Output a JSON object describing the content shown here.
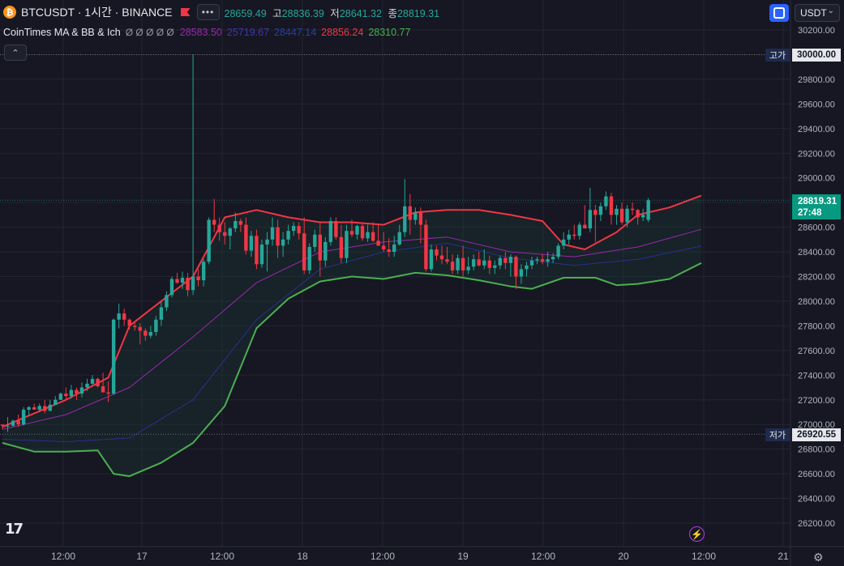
{
  "header": {
    "coin_glyph": "₿",
    "symbol": "BTCUSDT · 1시간 · BINANCE",
    "more_label": "•••",
    "ohlc": [
      {
        "key": "",
        "value": "28659.49"
      },
      {
        "key": "고",
        "value": "28836.39"
      },
      {
        "key": "저",
        "value": "28641.32"
      },
      {
        "key": "종",
        "value": "28819.31"
      }
    ]
  },
  "indicator": {
    "name": "CoinTimes MA & BB & Ich",
    "eye_icons": "Ø Ø Ø Ø Ø",
    "values": [
      {
        "text": "28583.50",
        "color": "#9c27b0"
      },
      {
        "text": "25719.67",
        "color": "#3f35a8"
      },
      {
        "text": "28447.14",
        "color": "#2a3f9f"
      },
      {
        "text": "28856.24",
        "color": "#f23645"
      },
      {
        "text": "28310.77",
        "color": "#4caf50"
      }
    ]
  },
  "toolbar": {
    "currency": "USDT",
    "collapse_icon": "⌃",
    "chevron": "⌄"
  },
  "price_axis": {
    "labels": [
      "30200.00",
      "29800.00",
      "29600.00",
      "29400.00",
      "29200.00",
      "29000.00",
      "28600.00",
      "28400.00",
      "28200.00",
      "28000.00",
      "27800.00",
      "27600.00",
      "27400.00",
      "27200.00",
      "27000.00",
      "26800.00",
      "26600.00",
      "26400.00",
      "26200.00"
    ],
    "high_tag": "고가",
    "high_value": "30000.00",
    "low_tag": "저가",
    "low_value": "26920.55",
    "last_price": "28819.31",
    "countdown": "27:48"
  },
  "time_axis": {
    "labels": [
      "12:00",
      "17",
      "12:00",
      "18",
      "12:00",
      "19",
      "12:00",
      "20",
      "12:00",
      "21"
    ]
  },
  "logo": "17",
  "bolt_icon": "⚡",
  "gear_icon": "⚙",
  "colors": {
    "up": "#26a69a",
    "down": "#f23645",
    "upper_band": "#f23645",
    "lower_band": "#4caf50",
    "ma": "#9c27b0",
    "mid": "#2a2f8f"
  },
  "chart_data": {
    "type": "candlestick",
    "title": "BTCUSDT · 1시간 · BINANCE",
    "timeframe": "1h",
    "ylim": [
      26100,
      30260
    ],
    "x_ticks": [
      "12:00",
      "17",
      "12:00",
      "18",
      "12:00",
      "19",
      "12:00",
      "20",
      "12:00",
      "21"
    ],
    "candles": [
      [
        27000,
        27000,
        26960,
        26990
      ],
      [
        26990,
        27060,
        26940,
        26990
      ],
      [
        26990,
        27040,
        26980,
        27030
      ],
      [
        27030,
        27080,
        26980,
        27000
      ],
      [
        27000,
        27140,
        26990,
        27120
      ],
      [
        27120,
        27150,
        27070,
        27140
      ],
      [
        27140,
        27170,
        27120,
        27120
      ],
      [
        27120,
        27170,
        27100,
        27150
      ],
      [
        27150,
        27200,
        27090,
        27110
      ],
      [
        27110,
        27200,
        27110,
        27160
      ],
      [
        27160,
        27230,
        27160,
        27200
      ],
      [
        27200,
        27260,
        27200,
        27250
      ],
      [
        27250,
        27300,
        27200,
        27230
      ],
      [
        27230,
        27320,
        27210,
        27280
      ],
      [
        27280,
        27300,
        27200,
        27250
      ],
      [
        27250,
        27340,
        27220,
        27300
      ],
      [
        27300,
        27370,
        27270,
        27330
      ],
      [
        27330,
        27400,
        27320,
        27370
      ],
      [
        27370,
        27380,
        27300,
        27310
      ],
      [
        27310,
        27420,
        27280,
        27260
      ],
      [
        27260,
        27350,
        27180,
        27250
      ],
      [
        27250,
        27860,
        27240,
        27850
      ],
      [
        27850,
        27980,
        27780,
        27900
      ],
      [
        27900,
        27940,
        27800,
        27850
      ],
      [
        27850,
        27860,
        27770,
        27800
      ],
      [
        27800,
        27830,
        27760,
        27790
      ],
      [
        27790,
        27820,
        27650,
        27760
      ],
      [
        27760,
        27780,
        27680,
        27720
      ],
      [
        27720,
        27800,
        27700,
        27750
      ],
      [
        27750,
        27880,
        27720,
        27850
      ],
      [
        27850,
        28000,
        27800,
        27950
      ],
      [
        27950,
        28080,
        27920,
        28050
      ],
      [
        28050,
        28200,
        28030,
        28180
      ],
      [
        28180,
        28230,
        28140,
        28150
      ],
      [
        28150,
        28240,
        28100,
        28190
      ],
      [
        28190,
        28230,
        28040,
        28090
      ],
      [
        28090,
        30000,
        28050,
        28200
      ],
      [
        28200,
        28260,
        28120,
        28170
      ],
      [
        28170,
        28340,
        28120,
        28320
      ],
      [
        28320,
        28680,
        28300,
        28660
      ],
      [
        28660,
        28830,
        28560,
        28620
      ],
      [
        28620,
        28680,
        28490,
        28560
      ],
      [
        28560,
        28640,
        28460,
        28530
      ],
      [
        28530,
        28600,
        28420,
        28590
      ],
      [
        28590,
        28720,
        28560,
        28650
      ],
      [
        28650,
        28670,
        28560,
        28620
      ],
      [
        28620,
        28680,
        28380,
        28410
      ],
      [
        28410,
        28570,
        28360,
        28530
      ],
      [
        28530,
        28580,
        28260,
        28300
      ],
      [
        28300,
        28500,
        28270,
        28460
      ],
      [
        28460,
        28560,
        28240,
        28500
      ],
      [
        28500,
        28680,
        28450,
        28600
      ],
      [
        28600,
        28660,
        28350,
        28450
      ],
      [
        28450,
        28560,
        28360,
        28500
      ],
      [
        28500,
        28620,
        28460,
        28570
      ],
      [
        28570,
        28640,
        28530,
        28610
      ],
      [
        28610,
        28640,
        28500,
        28550
      ],
      [
        28550,
        28680,
        28220,
        28250
      ],
      [
        28250,
        28470,
        28220,
        28440
      ],
      [
        28440,
        28580,
        28400,
        28540
      ],
      [
        28540,
        28640,
        28200,
        28330
      ],
      [
        28330,
        28520,
        28280,
        28480
      ],
      [
        28480,
        28680,
        28450,
        28650
      ],
      [
        28650,
        28680,
        28500,
        28520
      ],
      [
        28520,
        28620,
        28310,
        28350
      ],
      [
        28350,
        28620,
        28310,
        28570
      ],
      [
        28570,
        28660,
        28520,
        28540
      ],
      [
        28540,
        28620,
        28500,
        28610
      ],
      [
        28610,
        28640,
        28490,
        28510
      ],
      [
        28510,
        28620,
        28480,
        28560
      ],
      [
        28560,
        28640,
        28480,
        28490
      ],
      [
        28490,
        28620,
        28450,
        28450
      ],
      [
        28450,
        28560,
        28400,
        28420
      ],
      [
        28420,
        28510,
        28360,
        28400
      ],
      [
        28400,
        28530,
        28360,
        28460
      ],
      [
        28460,
        28620,
        28450,
        28560
      ],
      [
        28560,
        28990,
        28520,
        28770
      ],
      [
        28770,
        28870,
        28540,
        28660
      ],
      [
        28660,
        28760,
        28620,
        28720
      ],
      [
        28720,
        28760,
        28470,
        28620
      ],
      [
        28620,
        28660,
        28240,
        28260
      ],
      [
        28260,
        28460,
        28240,
        28420
      ],
      [
        28420,
        28450,
        28330,
        28370
      ],
      [
        28370,
        28450,
        28300,
        28340
      ],
      [
        28340,
        28440,
        28300,
        28320
      ],
      [
        28320,
        28380,
        28220,
        28250
      ],
      [
        28250,
        28380,
        28220,
        28350
      ],
      [
        28350,
        28450,
        28200,
        28250
      ],
      [
        28250,
        28360,
        28220,
        28280
      ],
      [
        28280,
        28380,
        28250,
        28340
      ],
      [
        28340,
        28400,
        28280,
        28290
      ],
      [
        28290,
        28420,
        28260,
        28330
      ],
      [
        28330,
        28370,
        28220,
        28270
      ],
      [
        28270,
        28330,
        28220,
        28290
      ],
      [
        28290,
        28370,
        28260,
        28350
      ],
      [
        28350,
        28400,
        28260,
        28310
      ],
      [
        28310,
        28380,
        28200,
        28360
      ],
      [
        28360,
        28370,
        28100,
        28200
      ],
      [
        28200,
        28300,
        28140,
        28260
      ],
      [
        28260,
        28320,
        28200,
        28290
      ],
      [
        28290,
        28360,
        28260,
        28330
      ],
      [
        28330,
        28360,
        28300,
        28340
      ],
      [
        28340,
        28380,
        28300,
        28320
      ],
      [
        28320,
        28400,
        28280,
        28340
      ],
      [
        28340,
        28390,
        28310,
        28360
      ],
      [
        28360,
        28470,
        28340,
        28450
      ],
      [
        28450,
        28560,
        28420,
        28500
      ],
      [
        28500,
        28580,
        28460,
        28540
      ],
      [
        28540,
        28620,
        28500,
        28530
      ],
      [
        28530,
        28640,
        28500,
        28620
      ],
      [
        28620,
        28780,
        28600,
        28590
      ],
      [
        28590,
        28920,
        28560,
        28740
      ],
      [
        28740,
        28780,
        28480,
        28700
      ],
      [
        28700,
        28800,
        28650,
        28770
      ],
      [
        28770,
        28890,
        28740,
        28850
      ],
      [
        28850,
        28880,
        28620,
        28700
      ],
      [
        28700,
        28780,
        28620,
        28750
      ],
      [
        28750,
        28800,
        28620,
        28640
      ],
      [
        28640,
        28780,
        28600,
        28750
      ],
      [
        28750,
        28800,
        28700,
        28740
      ],
      [
        28740,
        28750,
        28620,
        28680
      ],
      [
        28680,
        28750,
        28650,
        28700
      ],
      [
        28659.49,
        28836.39,
        28641.32,
        28819.31
      ]
    ],
    "series": [
      {
        "name": "",
        "color": "#f23645",
        "values": [
          [
            0,
            26980
          ],
          [
            12,
            27200
          ],
          [
            20,
            27380
          ],
          [
            24,
            27800
          ],
          [
            30,
            28000
          ],
          [
            36,
            28200
          ],
          [
            42,
            28680
          ],
          [
            48,
            28740
          ],
          [
            54,
            28680
          ],
          [
            60,
            28640
          ],
          [
            66,
            28640
          ],
          [
            72,
            28620
          ],
          [
            78,
            28720
          ],
          [
            84,
            28740
          ],
          [
            90,
            28740
          ],
          [
            96,
            28700
          ],
          [
            102,
            28650
          ],
          [
            106,
            28460
          ],
          [
            110,
            28420
          ],
          [
            116,
            28560
          ],
          [
            120,
            28700
          ],
          [
            126,
            28760
          ],
          [
            132,
            28856
          ]
        ]
      },
      {
        "name": "",
        "color": "#4caf50",
        "values": [
          [
            0,
            26850
          ],
          [
            6,
            26780
          ],
          [
            12,
            26780
          ],
          [
            18,
            26790
          ],
          [
            21,
            26600
          ],
          [
            24,
            26580
          ],
          [
            30,
            26690
          ],
          [
            36,
            26850
          ],
          [
            42,
            27150
          ],
          [
            48,
            27780
          ],
          [
            54,
            28020
          ],
          [
            60,
            28160
          ],
          [
            66,
            28200
          ],
          [
            72,
            28180
          ],
          [
            78,
            28230
          ],
          [
            84,
            28210
          ],
          [
            90,
            28170
          ],
          [
            96,
            28120
          ],
          [
            100,
            28100
          ],
          [
            106,
            28190
          ],
          [
            112,
            28190
          ],
          [
            116,
            28130
          ],
          [
            120,
            28140
          ],
          [
            126,
            28180
          ],
          [
            132,
            28310
          ]
        ]
      },
      {
        "name": "",
        "color": "#9c27b0",
        "values": [
          [
            0,
            26960
          ],
          [
            12,
            27080
          ],
          [
            24,
            27300
          ],
          [
            36,
            27710
          ],
          [
            48,
            28150
          ],
          [
            60,
            28400
          ],
          [
            72,
            28480
          ],
          [
            84,
            28520
          ],
          [
            96,
            28400
          ],
          [
            108,
            28360
          ],
          [
            120,
            28440
          ],
          [
            132,
            28583
          ]
        ]
      },
      {
        "name": "",
        "color": "#2a2f8f",
        "values": [
          [
            0,
            26880
          ],
          [
            12,
            26860
          ],
          [
            24,
            26890
          ],
          [
            36,
            27200
          ],
          [
            48,
            27850
          ],
          [
            60,
            28260
          ],
          [
            72,
            28400
          ],
          [
            84,
            28470
          ],
          [
            96,
            28350
          ],
          [
            108,
            28290
          ],
          [
            120,
            28340
          ],
          [
            132,
            28447
          ]
        ]
      }
    ],
    "annotations": {
      "high": 30000.0,
      "low": 26920.55,
      "last": 28819.31
    }
  }
}
